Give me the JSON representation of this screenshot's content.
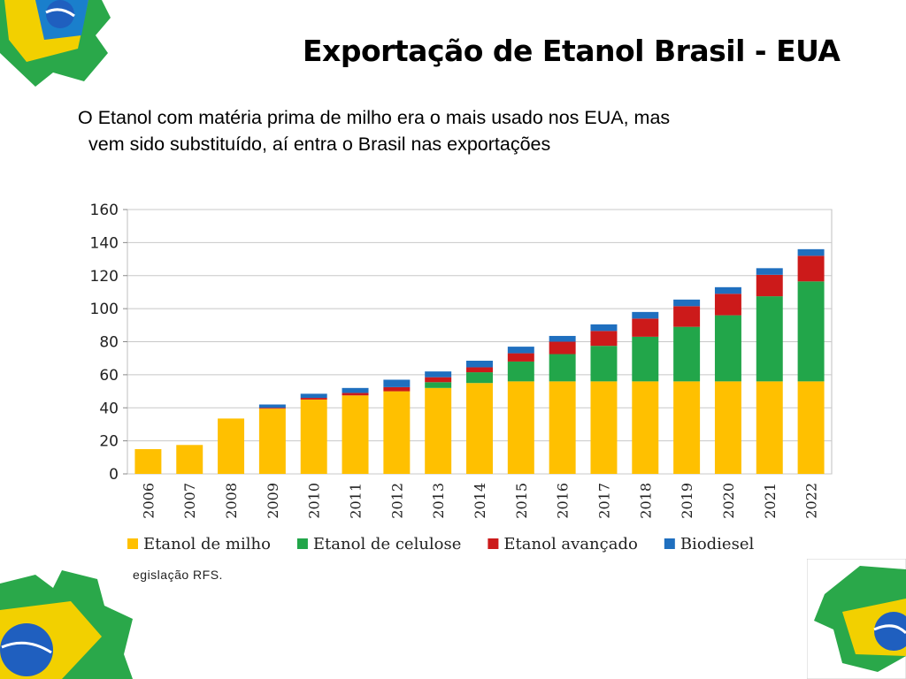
{
  "slide": {
    "title": "Exportação de Etanol Brasil - EUA",
    "subtitle_line1": "O Etanol com matéria prima de milho era o mais usado nos EUA, mas",
    "subtitle_line2": "vem sido substituído, aí entra o Brasil nas exportações",
    "source_note": "egislação RFS."
  },
  "chart_data": {
    "type": "bar",
    "stacked": true,
    "categories": [
      "2006",
      "2007",
      "2008",
      "2009",
      "2010",
      "2011",
      "2012",
      "2013",
      "2014",
      "2015",
      "2016",
      "2017",
      "2018",
      "2019",
      "2020",
      "2021",
      "2022"
    ],
    "series": [
      {
        "name": "Etanol de milho",
        "color": "#ffc000",
        "values": [
          15,
          17.5,
          33.5,
          39.5,
          45,
          47.5,
          50,
          52,
          55,
          56,
          56,
          56,
          56,
          56,
          56,
          56,
          56
        ]
      },
      {
        "name": "Etanol de celulose",
        "color": "#22a64a",
        "values": [
          0,
          0,
          0,
          0,
          0,
          0,
          0,
          3.5,
          6.5,
          12,
          16.5,
          21.5,
          27,
          33,
          40,
          51.5,
          60.5
        ]
      },
      {
        "name": "Etanol avançado",
        "color": "#cc1a1a",
        "values": [
          0,
          0,
          0,
          0.5,
          1,
          1.5,
          2.5,
          3,
          3,
          5,
          7.5,
          9,
          11,
          12.5,
          13,
          13,
          15.5
        ]
      },
      {
        "name": "Biodiesel",
        "color": "#1f6fbf",
        "values": [
          0,
          0,
          0,
          2,
          2.5,
          3,
          4.5,
          3.5,
          4,
          4,
          3.5,
          4,
          4,
          4,
          4,
          4,
          4
        ]
      }
    ],
    "yticks": [
      0,
      20,
      40,
      60,
      80,
      100,
      120,
      140,
      160
    ],
    "ylim": [
      0,
      160
    ],
    "grid": true,
    "legend_position": "bottom",
    "title": "",
    "xlabel": "",
    "ylabel": ""
  }
}
